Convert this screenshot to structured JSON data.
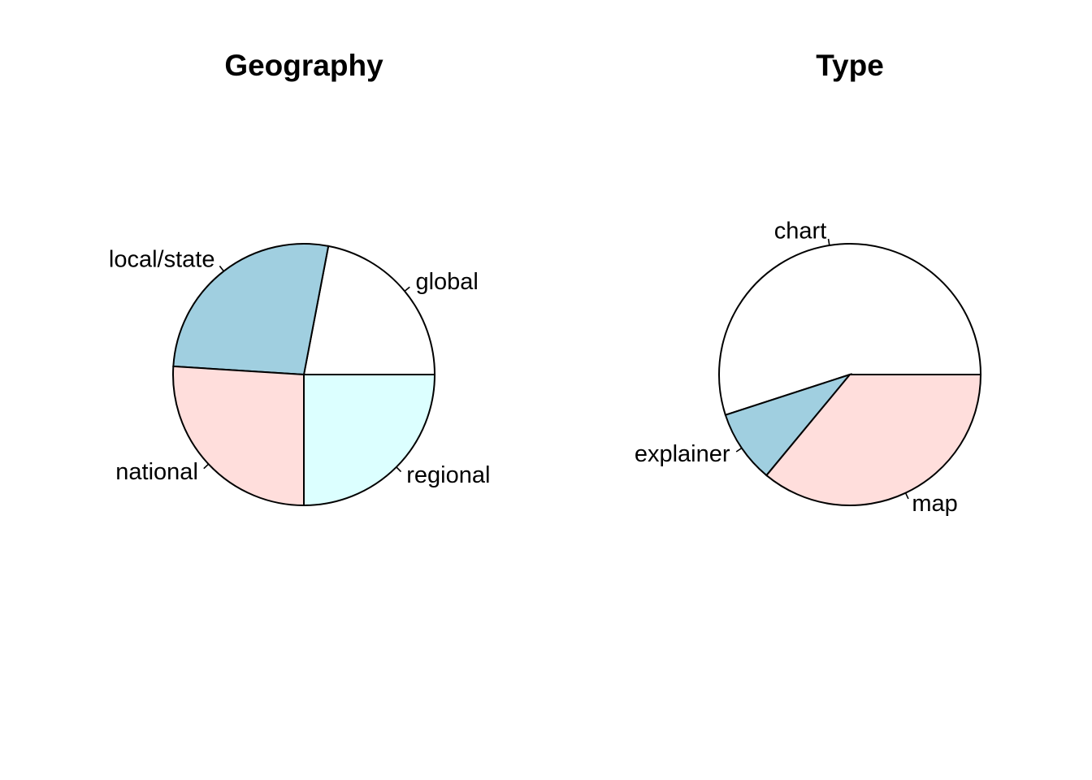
{
  "chart_data": [
    {
      "type": "pie",
      "title": "Geography",
      "clockwise": false,
      "start_angle_deg": 0,
      "slices": [
        {
          "label": "global",
          "value": 22,
          "color": "#ffffff"
        },
        {
          "label": "local/state",
          "value": 27,
          "color": "#a0cfe0"
        },
        {
          "label": "national",
          "value": 26,
          "color": "#ffdedc"
        },
        {
          "label": "regional",
          "value": 25,
          "color": "#dcffff"
        }
      ]
    },
    {
      "type": "pie",
      "title": "Type",
      "clockwise": false,
      "start_angle_deg": 0,
      "slices": [
        {
          "label": "chart",
          "value": 55,
          "color": "#ffffff"
        },
        {
          "label": "explainer",
          "value": 9,
          "color": "#a0cfe0"
        },
        {
          "label": "map",
          "value": 36,
          "color": "#ffdedc"
        }
      ]
    }
  ]
}
